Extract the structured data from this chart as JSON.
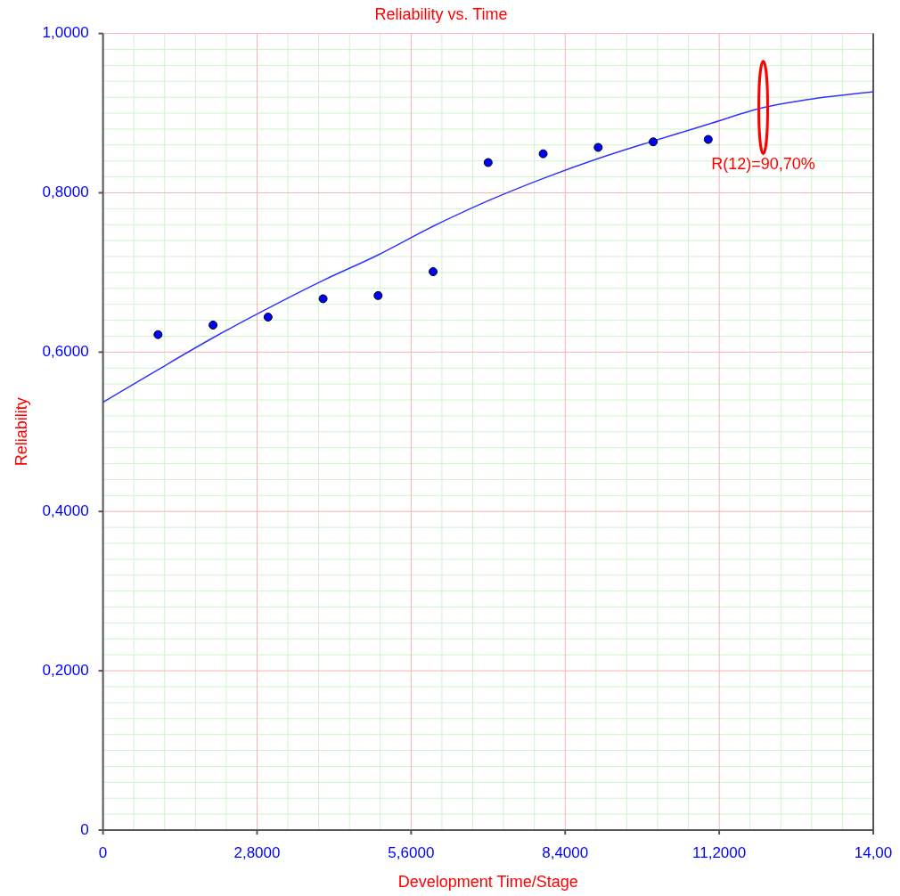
{
  "chart_data": {
    "type": "scatter",
    "title": "Reliability vs. Time",
    "xlabel": "Development Time/Stage",
    "ylabel": "Reliability",
    "series": [
      {
        "type": "scatter",
        "color": "#0000ff",
        "marker": "circle",
        "x": [
          1,
          2,
          3,
          4,
          5,
          6,
          7,
          8,
          9,
          10,
          11
        ],
        "values": [
          0.622,
          0.634,
          0.644,
          0.667,
          0.671,
          0.701,
          0.838,
          0.849,
          0.857,
          0.864,
          0.867
        ]
      },
      {
        "type": "line",
        "color": "#3333ff",
        "marker": "none",
        "x": [
          0,
          1,
          2,
          3,
          4,
          5,
          6,
          7,
          8,
          9,
          10,
          11,
          12,
          13,
          14
        ],
        "values": [
          0.537,
          0.578,
          0.618,
          0.655,
          0.69,
          0.722,
          0.758,
          0.79,
          0.818,
          0.843,
          0.865,
          0.886,
          0.907,
          0.919,
          0.927
        ]
      }
    ],
    "xlim": [
      0,
      14
    ],
    "xticks": [
      0,
      {
        "value": 0.56,
        "label": null
      },
      {
        "value": 1.12,
        "label": null
      },
      {
        "value": 1.68,
        "label": null
      },
      {
        "value": 2.24,
        "label": null
      },
      {
        "value": 2.8,
        "label": "2,8000"
      },
      {
        "value": 3.36,
        "label": null
      },
      {
        "value": 3.92,
        "label": null
      },
      {
        "value": 4.48,
        "label": null
      },
      {
        "value": 5.04,
        "label": null
      },
      {
        "value": 5.6,
        "label": "5,6000"
      },
      {
        "value": 6.16,
        "label": null
      },
      {
        "value": 6.72,
        "label": null
      },
      {
        "value": 7.28,
        "label": null
      },
      {
        "value": 7.84,
        "label": null
      },
      {
        "value": 8.4,
        "label": "8,4000"
      },
      {
        "value": 8.96,
        "label": null
      },
      {
        "value": 9.52,
        "label": null
      },
      {
        "value": 10.08,
        "label": null
      },
      {
        "value": 10.64,
        "label": null
      },
      {
        "value": 11.2,
        "label": "11,2000"
      },
      {
        "value": 11.76,
        "label": null
      },
      {
        "value": 12.32,
        "label": null
      },
      {
        "value": 12.88,
        "label": null
      },
      {
        "value": 13.44,
        "label": null
      },
      {
        "value": 14,
        "label": "14,00"
      }
    ],
    "ylim": [
      0,
      1
    ],
    "yticks": [
      0,
      {
        "value": 0.02,
        "label": null
      },
      {
        "value": 0.04,
        "label": null
      },
      {
        "value": 0.06,
        "label": null
      },
      {
        "value": 0.08,
        "label": null
      },
      {
        "value": 0.1,
        "label": null
      },
      {
        "value": 0.12,
        "label": null
      },
      {
        "value": 0.14,
        "label": null
      },
      {
        "value": 0.16,
        "label": null
      },
      {
        "value": 0.18,
        "label": null
      },
      {
        "value": 0.2,
        "label": "0,2000"
      },
      {
        "value": 0.22,
        "label": null
      },
      {
        "value": 0.24,
        "label": null
      },
      {
        "value": 0.26,
        "label": null
      },
      {
        "value": 0.28,
        "label": null
      },
      {
        "value": 0.3,
        "label": null
      },
      {
        "value": 0.32,
        "label": null
      },
      {
        "value": 0.34,
        "label": null
      },
      {
        "value": 0.36,
        "label": null
      },
      {
        "value": 0.38,
        "label": null
      },
      {
        "value": 0.4,
        "label": "0,4000"
      },
      {
        "value": 0.42,
        "label": null
      },
      {
        "value": 0.44,
        "label": null
      },
      {
        "value": 0.46,
        "label": null
      },
      {
        "value": 0.48,
        "label": null
      },
      {
        "value": 0.5,
        "label": null
      },
      {
        "value": 0.52,
        "label": null
      },
      {
        "value": 0.54,
        "label": null
      },
      {
        "value": 0.56,
        "label": null
      },
      {
        "value": 0.58,
        "label": null
      },
      {
        "value": 0.6,
        "label": "0,6000"
      },
      {
        "value": 0.62,
        "label": null
      },
      {
        "value": 0.64,
        "label": null
      },
      {
        "value": 0.66,
        "label": null
      },
      {
        "value": 0.68,
        "label": null
      },
      {
        "value": 0.7,
        "label": null
      },
      {
        "value": 0.72,
        "label": null
      },
      {
        "value": 0.74,
        "label": null
      },
      {
        "value": 0.76,
        "label": null
      },
      {
        "value": 0.78,
        "label": null
      },
      {
        "value": 0.8,
        "label": "0,8000"
      },
      {
        "value": 0.82,
        "label": null
      },
      {
        "value": 0.84,
        "label": null
      },
      {
        "value": 0.86,
        "label": null
      },
      {
        "value": 0.88,
        "label": null
      },
      {
        "value": 0.9,
        "label": null
      },
      {
        "value": 0.92,
        "label": null
      },
      {
        "value": 0.94,
        "label": null
      },
      {
        "value": 0.96,
        "label": null
      },
      {
        "value": 0.98,
        "label": null
      },
      {
        "value": 1,
        "label": "1,0000"
      }
    ],
    "grid": true,
    "annotations": [
      {
        "text": "R(12)=90,70%",
        "x": 12,
        "y": 0.907
      }
    ]
  }
}
